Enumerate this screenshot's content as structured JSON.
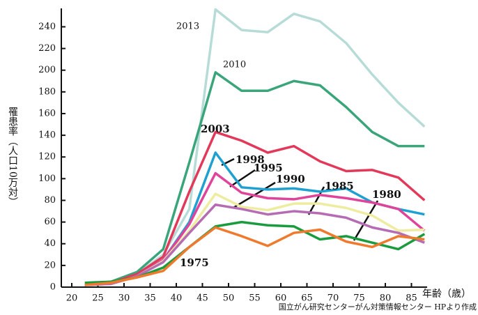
{
  "chart_data": {
    "type": "line",
    "x_label": "年齢（歳）",
    "y_label": "罹患率（人口10万対）",
    "source": "国立がん研究センターがん対策情報センター HPより作成",
    "x": [
      22.5,
      27.5,
      32.5,
      37.5,
      42.5,
      47.5,
      52.5,
      57.5,
      62.5,
      67.5,
      72.5,
      77.5,
      82.5,
      87.5
    ],
    "xlim": [
      18,
      88
    ],
    "xticks": [
      20,
      25,
      30,
      35,
      40,
      45,
      50,
      55,
      60,
      65,
      70,
      75,
      80,
      85
    ],
    "ylim": [
      0,
      257
    ],
    "yticks": [
      0,
      20,
      40,
      60,
      80,
      100,
      120,
      140,
      160,
      180,
      200,
      220,
      240
    ],
    "series": [
      {
        "name": "2013",
        "color": "#b7dcd7",
        "values": [
          2,
          4,
          12,
          30,
          72,
          256,
          237,
          235,
          252,
          245,
          225,
          196,
          170,
          148
        ]
      },
      {
        "name": "2010",
        "color": "#3aa57a",
        "values": [
          2,
          5,
          14,
          35,
          115,
          198,
          181,
          181,
          190,
          186,
          166,
          143,
          130,
          130
        ]
      },
      {
        "name": "2003",
        "color": "#e2395a",
        "values": [
          2,
          4,
          12,
          28,
          88,
          143,
          135,
          124,
          130,
          116,
          107,
          108,
          101,
          80
        ]
      },
      {
        "name": "1998",
        "color": "#1ea0d0",
        "values": [
          2,
          3,
          10,
          25,
          60,
          124,
          92,
          90,
          91,
          88,
          91,
          78,
          72,
          67
        ]
      },
      {
        "name": "1995",
        "color": "#e0449a",
        "values": [
          2,
          3,
          10,
          25,
          58,
          105,
          87,
          82,
          81,
          85,
          82,
          78,
          72,
          52
        ]
      },
      {
        "name": "1990",
        "color": "#eeeca0",
        "values": [
          2,
          3,
          10,
          24,
          52,
          86,
          74,
          71,
          77,
          77,
          73,
          66,
          52,
          53
        ]
      },
      {
        "name": "1985",
        "color": "#b56cb2",
        "values": [
          2,
          3,
          10,
          23,
          50,
          76,
          72,
          67,
          70,
          68,
          64,
          55,
          50,
          41
        ]
      },
      {
        "name": "1980",
        "color": "#1a9b3e",
        "values": [
          4,
          5,
          9,
          18,
          37,
          56,
          60,
          57,
          56,
          44,
          47,
          41,
          35,
          49
        ]
      },
      {
        "name": "1975",
        "color": "#ef7a2d",
        "values": [
          2,
          4,
          9,
          15,
          37,
          55,
          47,
          38,
          50,
          53,
          42,
          37,
          47,
          44
        ]
      }
    ]
  }
}
